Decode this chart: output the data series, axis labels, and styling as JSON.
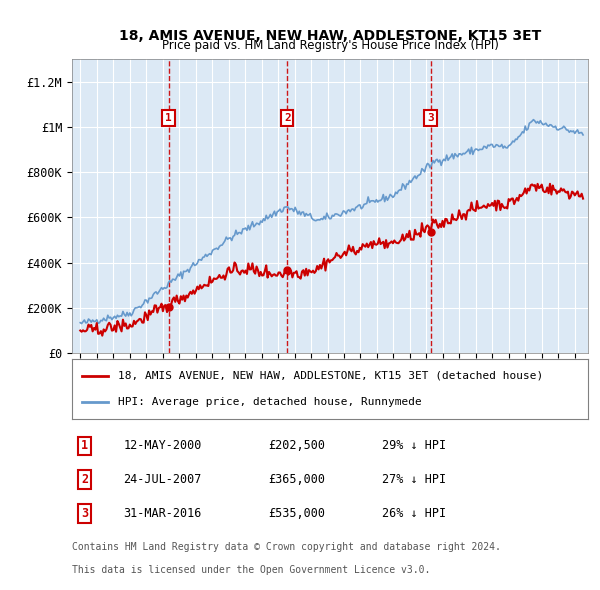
{
  "title": "18, AMIS AVENUE, NEW HAW, ADDLESTONE, KT15 3ET",
  "subtitle": "Price paid vs. HM Land Registry's House Price Index (HPI)",
  "plot_bg_color": "#dce9f5",
  "ylim": [
    0,
    1300000
  ],
  "yticks": [
    0,
    200000,
    400000,
    600000,
    800000,
    1000000,
    1200000
  ],
  "ytick_labels": [
    "£0",
    "£200K",
    "£400K",
    "£600K",
    "£800K",
    "£1M",
    "£1.2M"
  ],
  "xlim_left": 1994.5,
  "xlim_right": 2025.8,
  "sales": [
    {
      "num": 1,
      "date_str": "12-MAY-2000",
      "date_x": 2000.36,
      "price": 202500,
      "pct": "29%"
    },
    {
      "num": 2,
      "date_str": "24-JUL-2007",
      "date_x": 2007.56,
      "price": 365000,
      "pct": "27%"
    },
    {
      "num": 3,
      "date_str": "31-MAR-2016",
      "date_x": 2016.25,
      "price": 535000,
      "pct": "26%"
    }
  ],
  "legend_line1": "18, AMIS AVENUE, NEW HAW, ADDLESTONE, KT15 3ET (detached house)",
  "legend_line2": "HPI: Average price, detached house, Runnymede",
  "footer1": "Contains HM Land Registry data © Crown copyright and database right 2024.",
  "footer2": "This data is licensed under the Open Government Licence v3.0.",
  "red_color": "#cc0000",
  "blue_color": "#6699cc",
  "box_color": "#cc0000",
  "num_points": 366
}
